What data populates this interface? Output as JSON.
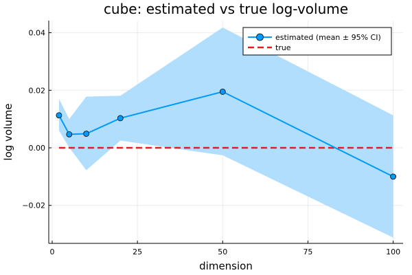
{
  "chart_data": {
    "type": "line",
    "title": "cube: estimated vs true log-volume",
    "xlabel": "dimension",
    "ylabel": "log volume",
    "xlim": [
      -1,
      102.9
    ],
    "ylim": [
      -0.0332,
      0.0442
    ],
    "xticks": [
      0,
      25,
      50,
      75,
      100
    ],
    "xtick_labels": [
      "0",
      "25",
      "50",
      "75",
      "100"
    ],
    "yticks": [
      -0.02,
      0.0,
      0.02,
      0.04
    ],
    "ytick_labels": [
      "−0.02",
      "0.00",
      "0.02",
      "0.04"
    ],
    "grid": true,
    "legend_position": "top-right",
    "series": [
      {
        "name": "estimated (mean ± 95% CI)",
        "color": "#009AFA",
        "style": "solid-line-with-markers",
        "x": [
          2,
          5,
          10,
          20,
          50,
          100
        ],
        "values": [
          0.0113,
          0.0047,
          0.0049,
          0.0103,
          0.0195,
          -0.01
        ],
        "ci_lower": [
          0.006,
          0.0001,
          -0.0078,
          0.0025,
          -0.0026,
          -0.0312
        ],
        "ci_upper": [
          0.017,
          0.01,
          0.0178,
          0.0181,
          0.0418,
          0.0113
        ],
        "ci_color": "#B2DEFD"
      },
      {
        "name": "true",
        "color": "#E81B1B",
        "style": "dashed-line",
        "x": [
          2,
          100
        ],
        "values": [
          0.0,
          0.0
        ]
      }
    ]
  }
}
